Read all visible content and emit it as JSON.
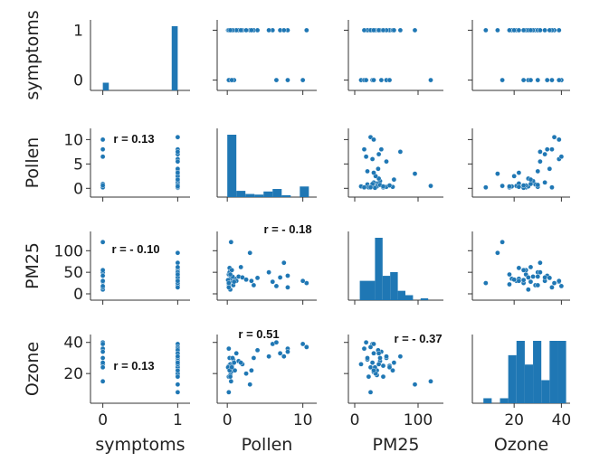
{
  "chart_data": {
    "type": "scatter",
    "variables": [
      "symptoms",
      "Pollen",
      "PM25",
      "Ozone"
    ],
    "axes": {
      "symptoms": {
        "range": [
          -0.08,
          1.08
        ],
        "ticks": [
          "0",
          "1"
        ]
      },
      "Pollen": {
        "range": [
          -0.5,
          11
        ],
        "ticks": [
          "0",
          "10"
        ]
      },
      "PM25": {
        "range": [
          0,
          130
        ],
        "ticks": [
          "0",
          "100"
        ]
      },
      "Ozone": {
        "range": [
          5,
          41
        ],
        "ticks": [
          "20",
          "40"
        ]
      }
    },
    "y_ticks": {
      "symptoms": [
        "0",
        "1"
      ],
      "Pollen": [
        "0",
        "5",
        "10"
      ],
      "PM25": [
        "0",
        "50",
        "100"
      ],
      "Ozone": [
        "20",
        "40"
      ]
    },
    "correlations": [
      {
        "row": "Pollen",
        "col": "symptoms",
        "label": "r = 0.13"
      },
      {
        "row": "PM25",
        "col": "symptoms",
        "label": "r = - 0.10"
      },
      {
        "row": "PM25",
        "col": "Pollen",
        "label": "r = - 0.18"
      },
      {
        "row": "Ozone",
        "col": "symptoms",
        "label": "r = 0.13"
      },
      {
        "row": "Ozone",
        "col": "Pollen",
        "label": "r = 0.51"
      },
      {
        "row": "Ozone",
        "col": "PM25",
        "label": "r = - 0.37"
      }
    ],
    "histograms": {
      "symptoms": {
        "bins": [
          [
            0,
            0.08
          ],
          [
            0.92,
            1.0
          ]
        ],
        "counts": [
          0.12,
          1.0
        ]
      },
      "Pollen": {
        "bins": [
          [
            0,
            1.2
          ],
          [
            1.2,
            2.4
          ],
          [
            2.4,
            3.6
          ],
          [
            3.6,
            4.8
          ],
          [
            4.8,
            6.0
          ],
          [
            6.0,
            7.2
          ],
          [
            7.2,
            8.4
          ],
          [
            8.4,
            9.6
          ],
          [
            9.6,
            10.8
          ]
        ],
        "counts": [
          1.0,
          0.1,
          0.05,
          0.04,
          0.09,
          0.13,
          0.03,
          0.0,
          0.17
        ]
      },
      "PM25": {
        "bins": [
          [
            8,
            20
          ],
          [
            20,
            32
          ],
          [
            32,
            44
          ],
          [
            44,
            56
          ],
          [
            56,
            68
          ],
          [
            68,
            80
          ],
          [
            80,
            92
          ],
          [
            92,
            104
          ],
          [
            104,
            116
          ],
          [
            116,
            128
          ]
        ],
        "counts": [
          0.31,
          0.31,
          1.0,
          0.39,
          0.45,
          0.15,
          0.08,
          0.0,
          0.03,
          0.0
        ]
      },
      "Ozone": {
        "bins": [
          [
            7,
            10.5
          ],
          [
            10.5,
            14
          ],
          [
            14,
            17.5
          ],
          [
            17.5,
            21
          ],
          [
            21,
            24.5
          ],
          [
            24.5,
            28
          ],
          [
            28,
            31.5
          ],
          [
            31.5,
            35
          ],
          [
            35,
            38.5
          ],
          [
            38.5,
            42
          ]
        ],
        "counts": [
          0.08,
          0.0,
          0.08,
          0.77,
          1.0,
          0.62,
          1.0,
          0.37,
          1.0,
          1.0
        ]
      }
    },
    "observations": [
      {
        "symptoms": 1,
        "Pollen": 0.3,
        "PM25": 25,
        "Ozone": 24
      },
      {
        "symptoms": 1,
        "Pollen": 0.5,
        "PM25": 30,
        "Ozone": 21
      },
      {
        "symptoms": 1,
        "Pollen": 1.0,
        "PM25": 35,
        "Ozone": 22
      },
      {
        "symptoms": 1,
        "Pollen": 0.2,
        "PM25": 45,
        "Ozone": 25
      },
      {
        "symptoms": 0,
        "Pollen": 0.4,
        "PM25": 10,
        "Ozone": 26
      },
      {
        "symptoms": 1,
        "Pollen": 0.8,
        "PM25": 20,
        "Ozone": 29
      },
      {
        "symptoms": 1,
        "Pollen": 1.5,
        "PM25": 40,
        "Ozone": 28
      },
      {
        "symptoms": 1,
        "Pollen": 0.6,
        "PM25": 55,
        "Ozone": 25
      },
      {
        "symptoms": 0,
        "Pollen": 0.3,
        "PM25": 50,
        "Ozone": 30
      },
      {
        "symptoms": 1,
        "Pollen": 1.2,
        "PM25": 30,
        "Ozone": 33
      },
      {
        "symptoms": 1,
        "Pollen": 0.2,
        "PM25": 22,
        "Ozone": 18
      },
      {
        "symptoms": 1,
        "Pollen": 0.4,
        "PM25": 35,
        "Ozone": 19
      },
      {
        "symptoms": 0,
        "Pollen": 0.9,
        "PM25": 28,
        "Ozone": 27
      },
      {
        "symptoms": 1,
        "Pollen": 0.1,
        "PM25": 32,
        "Ozone": 24
      },
      {
        "symptoms": 1,
        "Pollen": 2.0,
        "PM25": 38,
        "Ozone": 26
      },
      {
        "symptoms": 1,
        "Pollen": 0.3,
        "PM25": 60,
        "Ozone": 22
      },
      {
        "symptoms": 0,
        "Pollen": 0.5,
        "PM25": 120,
        "Ozone": 15
      },
      {
        "symptoms": 1,
        "Pollen": 0.2,
        "PM25": 25,
        "Ozone": 8
      },
      {
        "symptoms": 1,
        "Pollen": 3.0,
        "PM25": 95,
        "Ozone": 13
      },
      {
        "symptoms": 1,
        "Pollen": 0.7,
        "PM25": 40,
        "Ozone": 30
      },
      {
        "symptoms": 0,
        "Pollen": 0.2,
        "PM25": 15,
        "Ozone": 36
      },
      {
        "symptoms": 1,
        "Pollen": 3.5,
        "PM25": 20,
        "Ozone": 30
      },
      {
        "symptoms": 1,
        "Pollen": 6.0,
        "PM25": 28,
        "Ozone": 39
      },
      {
        "symptoms": 0,
        "Pollen": 6.5,
        "PM25": 18,
        "Ozone": 40
      },
      {
        "symptoms": 1,
        "Pollen": 10.5,
        "PM25": 25,
        "Ozone": 37
      },
      {
        "symptoms": 0,
        "Pollen": 10.0,
        "PM25": 30,
        "Ozone": 39
      },
      {
        "symptoms": 1,
        "Pollen": 8.0,
        "PM25": 15,
        "Ozone": 36
      },
      {
        "symptoms": 1,
        "Pollen": 5.5,
        "PM25": 50,
        "Ozone": 31
      },
      {
        "symptoms": 0,
        "Pollen": 8.0,
        "PM25": 42,
        "Ozone": 34
      },
      {
        "symptoms": 1,
        "Pollen": 2.5,
        "PM25": 33,
        "Ozone": 20
      },
      {
        "symptoms": 1,
        "Pollen": 4.0,
        "PM25": 37,
        "Ozone": 35
      },
      {
        "symptoms": 1,
        "Pollen": 7.0,
        "PM25": 38,
        "Ozone": 33
      },
      {
        "symptoms": 1,
        "Pollen": 7.5,
        "PM25": 72,
        "Ozone": 31
      },
      {
        "symptoms": 0,
        "Pollen": 0.6,
        "PM25": 55,
        "Ozone": 24
      },
      {
        "symptoms": 1,
        "Pollen": 1.8,
        "PM25": 62,
        "Ozone": 27
      },
      {
        "symptoms": 1,
        "Pollen": 0.4,
        "PM25": 45,
        "Ozone": 18
      },
      {
        "symptoms": 1,
        "Pollen": 3.2,
        "PM25": 30,
        "Ozone": 22
      }
    ],
    "color": "#1f77b4"
  }
}
